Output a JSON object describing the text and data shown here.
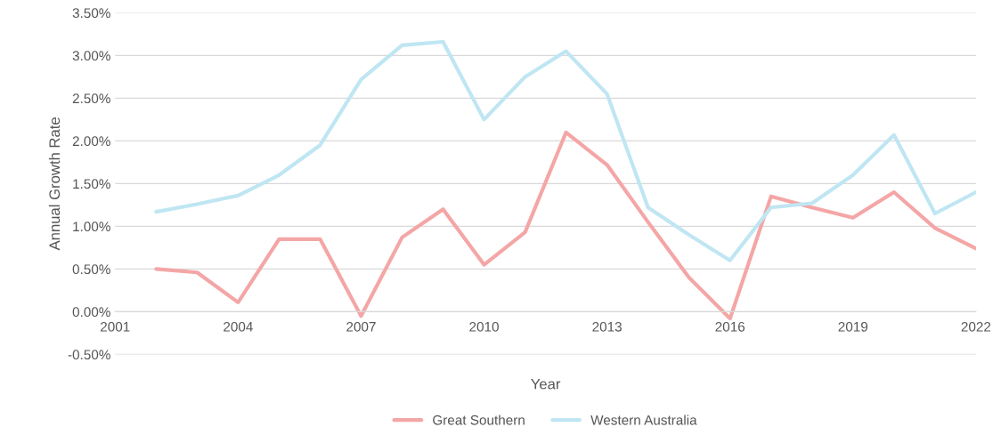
{
  "chart_data": {
    "type": "line",
    "xlabel": "Year",
    "ylabel": "Annual Growth Rate",
    "x": [
      2002,
      2003,
      2004,
      2005,
      2006,
      2007,
      2008,
      2009,
      2010,
      2011,
      2012,
      2013,
      2014,
      2015,
      2016,
      2017,
      2018,
      2019,
      2020,
      2021,
      2022
    ],
    "series": [
      {
        "name": "Great Southern",
        "color": "#f4a6a6",
        "values": [
          0.5,
          0.46,
          0.11,
          0.85,
          0.85,
          -0.05,
          0.87,
          1.2,
          0.55,
          0.93,
          2.1,
          1.72,
          1.05,
          0.4,
          -0.08,
          1.35,
          1.22,
          1.1,
          1.4,
          0.98,
          0.74
        ]
      },
      {
        "name": "Western Australia",
        "color": "#bfe6f2",
        "values": [
          1.17,
          1.26,
          1.36,
          1.6,
          1.95,
          2.72,
          3.12,
          3.16,
          2.25,
          2.75,
          3.05,
          2.55,
          1.22,
          0.9,
          0.6,
          1.22,
          1.27,
          1.6,
          2.07,
          1.15,
          1.4
        ]
      }
    ],
    "xlim": [
      2001,
      2022
    ],
    "xticks": [
      2001,
      2004,
      2007,
      2010,
      2013,
      2016,
      2019,
      2022
    ],
    "ylim": [
      -0.5,
      3.5
    ],
    "yticks": [
      {
        "value": -0.5,
        "label": "-0.50%"
      },
      {
        "value": 0,
        "label": "0.00%"
      },
      {
        "value": 0.5,
        "label": "0.50%"
      },
      {
        "value": 1,
        "label": "1.00%"
      },
      {
        "value": 1.5,
        "label": "1.50%"
      },
      {
        "value": 2,
        "label": "2.00%"
      },
      {
        "value": 2.5,
        "label": "2.50%"
      },
      {
        "value": 3,
        "label": "3.00%"
      },
      {
        "value": 3.5,
        "label": "3.50%"
      }
    ],
    "grid": "y",
    "legend": "bottom",
    "marker": "none",
    "line_style": "solid"
  }
}
